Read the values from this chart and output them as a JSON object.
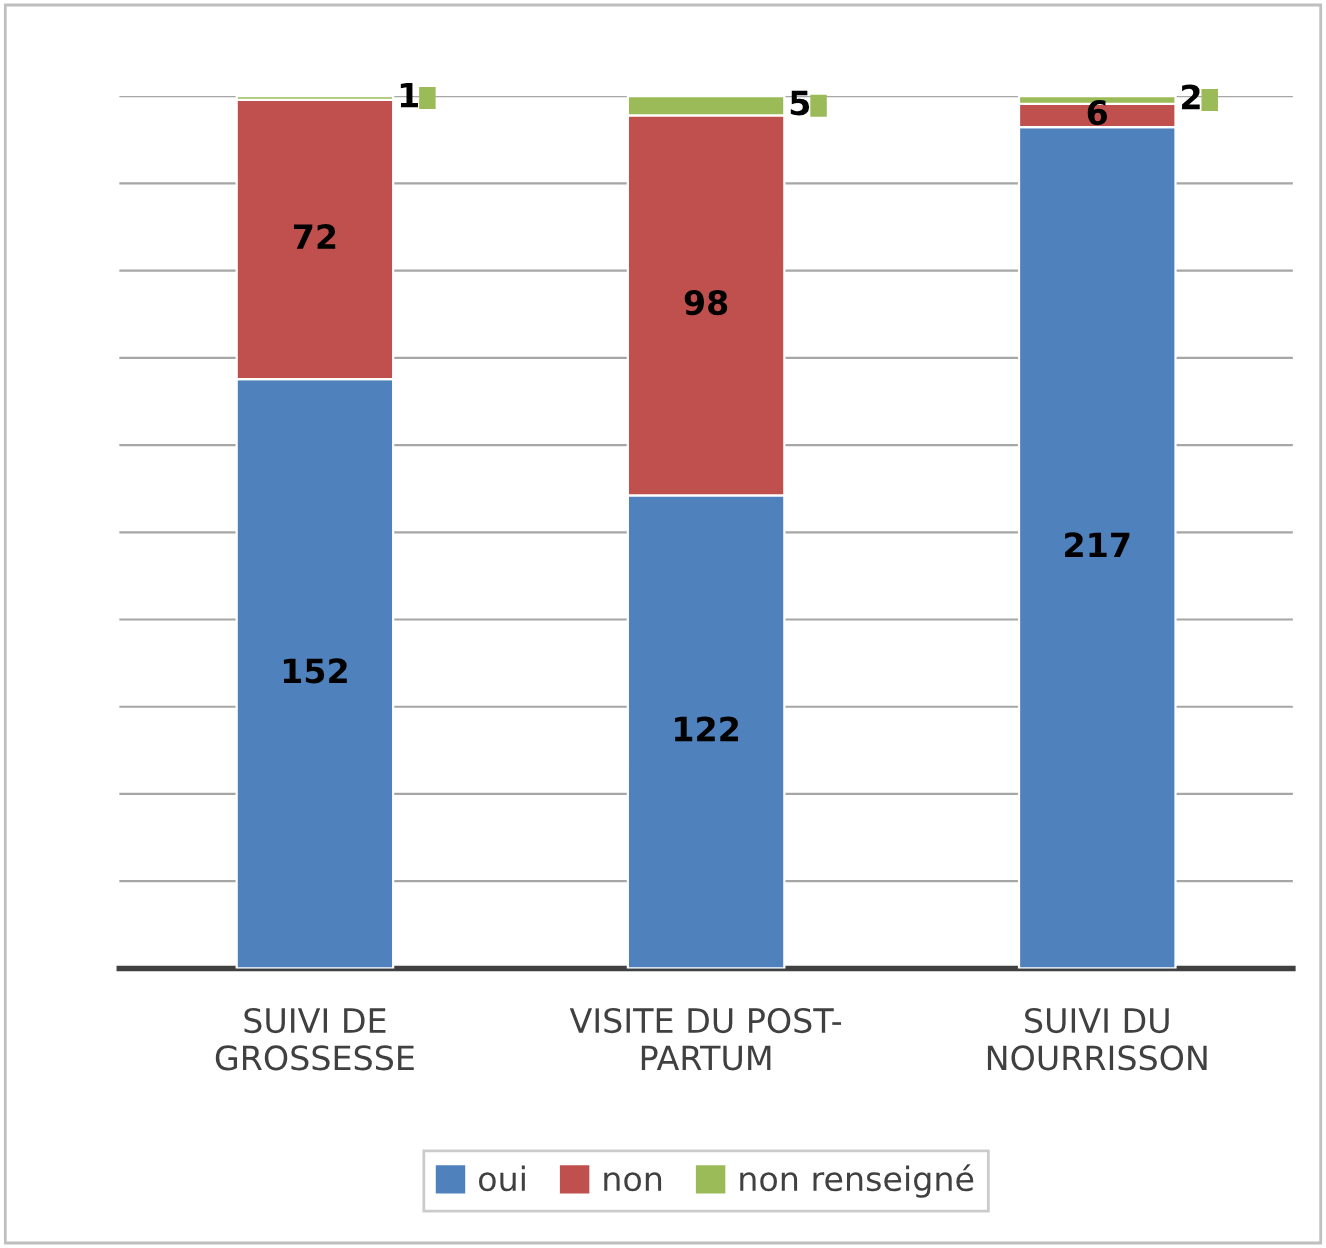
{
  "chart_data": {
    "type": "bar",
    "stacked": true,
    "categories": [
      "SUIVI DE\nGROSSESSE",
      "VISITE DU POST-\nPARTUM",
      "SUIVI DU\nNOURRISSON"
    ],
    "series": [
      {
        "name": "oui",
        "color": "#4f81bd",
        "values": [
          152,
          122,
          217
        ]
      },
      {
        "name": "non",
        "color": "#c0504d",
        "values": [
          72,
          98,
          6
        ]
      },
      {
        "name": "non renseigné",
        "color": "#9bbb59",
        "values": [
          1,
          5,
          2
        ]
      }
    ],
    "ylim": [
      0,
      225
    ],
    "yticks": [
      {
        "value": 0,
        "label": null
      },
      {
        "value": 22.5,
        "label": null
      },
      {
        "value": 45,
        "label": null
      },
      {
        "value": 67.5,
        "label": null
      },
      {
        "value": 90,
        "label": null
      },
      {
        "value": 112.5,
        "label": null
      },
      {
        "value": 135,
        "label": null
      },
      {
        "value": 157.5,
        "label": null
      },
      {
        "value": 180,
        "label": null
      },
      {
        "value": 202.5,
        "label": null
      },
      {
        "value": 225,
        "label": null
      }
    ],
    "tick_labels": "x",
    "grid": "y",
    "legend": "bottom",
    "data_labels": true
  }
}
